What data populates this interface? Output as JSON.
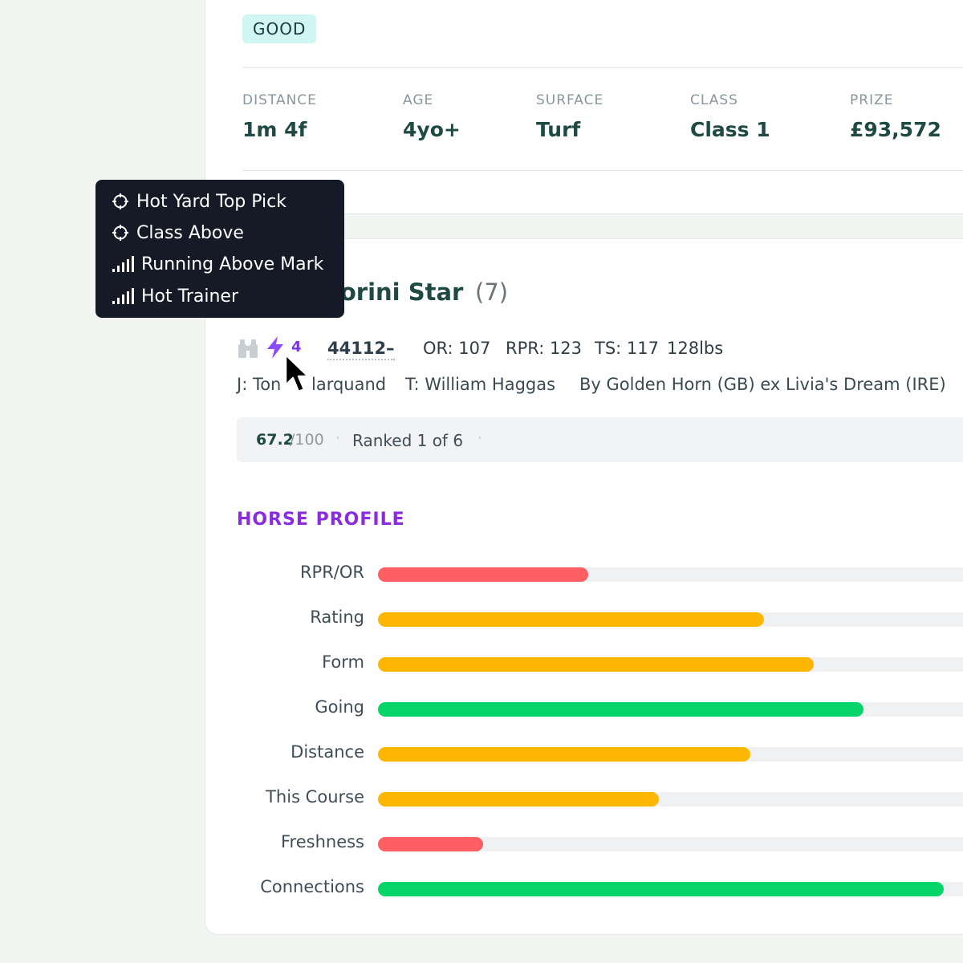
{
  "race": {
    "going": "GOOD",
    "stats": [
      {
        "label": "DISTANCE",
        "value": "1m 4f"
      },
      {
        "label": "AGE",
        "value": "4yo+"
      },
      {
        "label": "SURFACE",
        "value": "Turf"
      },
      {
        "label": "CLASS",
        "value": "Class 1"
      },
      {
        "label": "PRIZE",
        "value": "£93,572"
      }
    ]
  },
  "runner": {
    "name_visible": "torini Star",
    "draw": "(7)",
    "bolt_count": "4",
    "form": "44112–",
    "or": "OR: 107",
    "rpr": "RPR: 123",
    "ts": "TS: 117",
    "weight": "128lbs",
    "jockey_prefix": "J: Ton",
    "jockey_suffix": "larquand",
    "trainer": "T: William Haggas",
    "breeding": "By Golden Horn (GB) ex Livia's Dream (IRE)",
    "score": "67.2",
    "score_max": "/100",
    "rank": "Ranked 1 of 6",
    "icons": {
      "binoculars": "binoculars-icon",
      "bolt": "lightning-bolt-icon"
    }
  },
  "tooltip": {
    "items": [
      {
        "icon": "crosshair-icon",
        "label": "Hot Yard Top Pick"
      },
      {
        "icon": "crosshair-icon",
        "label": "Class Above"
      },
      {
        "icon": "signal-bars-icon",
        "label": "Running Above Mark"
      },
      {
        "icon": "signal-bars-icon",
        "label": "Hot Trainer"
      }
    ]
  },
  "profile": {
    "title": "HORSE PROFILE",
    "colors": {
      "red": "#ff5f63",
      "amber": "#ffb703",
      "green": "#06d66a"
    },
    "metrics": [
      {
        "label": "RPR/OR",
        "value": 0.36,
        "color": "#ff5f63"
      },
      {
        "label": "Rating",
        "value": 0.66,
        "color": "#ffb703"
      },
      {
        "label": "Form",
        "value": 0.745,
        "color": "#ffb703"
      },
      {
        "label": "Going",
        "value": 0.83,
        "color": "#06d66a"
      },
      {
        "label": "Distance",
        "value": 0.637,
        "color": "#ffb703"
      },
      {
        "label": "This Course",
        "value": 0.48,
        "color": "#ffb703"
      },
      {
        "label": "Freshness",
        "value": 0.18,
        "color": "#ff5f63"
      },
      {
        "label": "Connections",
        "value": 0.967,
        "color": "#06d66a"
      }
    ]
  }
}
